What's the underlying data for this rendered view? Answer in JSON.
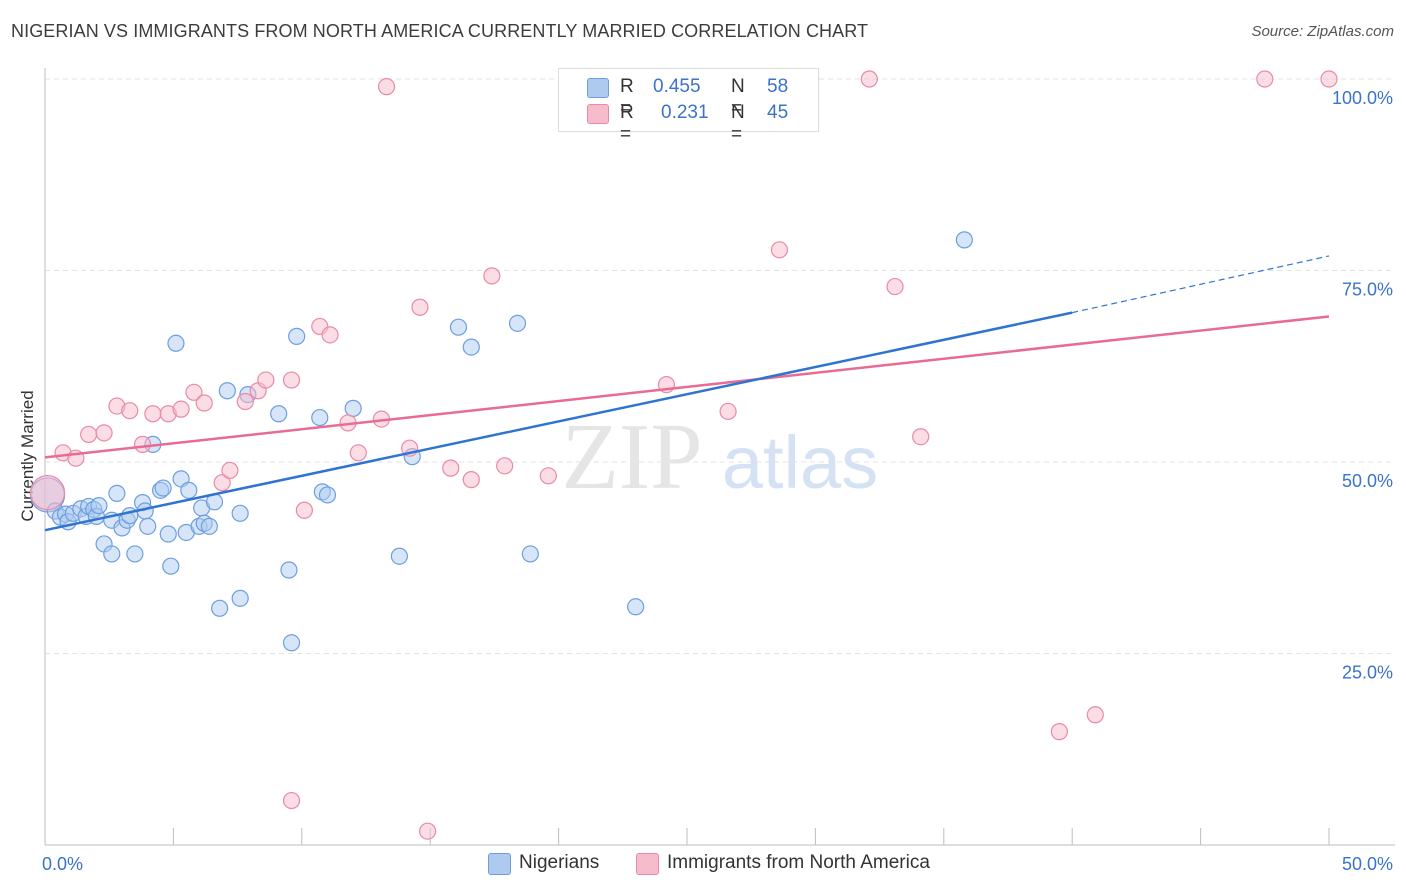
{
  "title": "NIGERIAN VS IMMIGRANTS FROM NORTH AMERICA CURRENTLY MARRIED CORRELATION CHART",
  "source": "Source: ZipAtlas.com",
  "watermark": {
    "zip": "ZIP",
    "atlas": "atlas"
  },
  "legend": {
    "rows": [
      {
        "r_label": "R =",
        "r_value": "0.455",
        "n_label": "N =",
        "n_value": "58"
      },
      {
        "r_label": "R =",
        "r_value": "0.231",
        "n_label": "N =",
        "n_value": "45"
      }
    ]
  },
  "colors": {
    "blue_fill": "#aecbef",
    "blue_stroke": "#6d9ee0",
    "blue_line": "#2f74d0",
    "pink_fill": "#f7bccc",
    "pink_stroke": "#e98aa6",
    "pink_line": "#e86b93",
    "tick_label": "#3a73c9",
    "grid": "#e3e3e3"
  },
  "chart_data": {
    "type": "scatter",
    "title": "NIGERIAN VS IMMIGRANTS FROM NORTH AMERICA CURRENTLY MARRIED CORRELATION CHART",
    "xlabel": "",
    "ylabel": "Currently Married",
    "xlim": [
      0,
      50
    ],
    "ylim": [
      0,
      100
    ],
    "x_tick_labels": [
      "0.0%",
      "50.0%"
    ],
    "y_tick_values": [
      25,
      50,
      75,
      100
    ],
    "y_tick_labels": [
      "25.0%",
      "50.0%",
      "75.0%",
      "100.0%"
    ],
    "grid": true,
    "legend_placement": "top-center",
    "series": [
      {
        "name": "Nigerians",
        "color": "#6d9ee0",
        "r": 0.455,
        "n": 58,
        "trend": {
          "x": [
            0,
            40
          ],
          "y": [
            41.1,
            69.5
          ],
          "dashed_extension": {
            "x": [
              40,
              50
            ],
            "y": [
              69.5,
              76.9
            ]
          }
        },
        "points": [
          [
            0.1,
            45.7
          ],
          [
            0.4,
            43.6
          ],
          [
            0.6,
            42.8
          ],
          [
            0.8,
            43.2
          ],
          [
            0.9,
            42.2
          ],
          [
            1.1,
            43.3
          ],
          [
            1.4,
            43.9
          ],
          [
            1.6,
            42.9
          ],
          [
            1.7,
            44.2
          ],
          [
            1.9,
            43.8
          ],
          [
            2.0,
            42.9
          ],
          [
            2.1,
            44.3
          ],
          [
            2.3,
            39.3
          ],
          [
            2.6,
            42.4
          ],
          [
            2.6,
            38.0
          ],
          [
            2.8,
            45.9
          ],
          [
            3.0,
            41.4
          ],
          [
            3.2,
            42.4
          ],
          [
            3.3,
            43.0
          ],
          [
            3.5,
            38.0
          ],
          [
            3.8,
            44.7
          ],
          [
            3.9,
            43.6
          ],
          [
            4.0,
            41.6
          ],
          [
            4.2,
            52.3
          ],
          [
            4.5,
            46.3
          ],
          [
            4.6,
            46.6
          ],
          [
            4.8,
            40.6
          ],
          [
            4.9,
            36.4
          ],
          [
            5.1,
            65.5
          ],
          [
            5.3,
            47.8
          ],
          [
            5.5,
            40.8
          ],
          [
            5.6,
            46.3
          ],
          [
            6.0,
            41.6
          ],
          [
            6.1,
            44.0
          ],
          [
            6.2,
            42.0
          ],
          [
            6.4,
            41.6
          ],
          [
            6.6,
            44.8
          ],
          [
            6.8,
            30.9
          ],
          [
            7.1,
            59.3
          ],
          [
            7.6,
            32.2
          ],
          [
            7.6,
            43.3
          ],
          [
            7.9,
            58.8
          ],
          [
            9.1,
            56.3
          ],
          [
            9.5,
            35.9
          ],
          [
            9.6,
            26.4
          ],
          [
            9.8,
            66.4
          ],
          [
            10.7,
            55.8
          ],
          [
            10.8,
            46.1
          ],
          [
            11.0,
            45.7
          ],
          [
            12.0,
            57.0
          ],
          [
            13.8,
            37.7
          ],
          [
            14.3,
            50.7
          ],
          [
            16.1,
            67.6
          ],
          [
            16.6,
            65.0
          ],
          [
            18.4,
            68.1
          ],
          [
            18.9,
            38.0
          ],
          [
            23.0,
            31.1
          ],
          [
            35.8,
            79.0
          ]
        ]
      },
      {
        "name": "Immigrants from North America",
        "color": "#e98aa6",
        "r": 0.231,
        "n": 45,
        "trend": {
          "x": [
            0,
            50
          ],
          "y": [
            50.6,
            69.0
          ]
        },
        "points": [
          [
            0.1,
            46.0
          ],
          [
            0.7,
            51.2
          ],
          [
            1.2,
            50.5
          ],
          [
            1.7,
            53.6
          ],
          [
            2.3,
            53.8
          ],
          [
            2.8,
            57.3
          ],
          [
            3.3,
            56.7
          ],
          [
            3.8,
            52.3
          ],
          [
            4.2,
            56.3
          ],
          [
            4.8,
            56.3
          ],
          [
            5.3,
            56.9
          ],
          [
            5.8,
            59.1
          ],
          [
            6.2,
            57.7
          ],
          [
            6.9,
            47.3
          ],
          [
            7.2,
            48.9
          ],
          [
            7.8,
            57.9
          ],
          [
            8.3,
            59.3
          ],
          [
            8.6,
            60.7
          ],
          [
            9.6,
            60.7
          ],
          [
            10.1,
            43.7
          ],
          [
            10.7,
            67.7
          ],
          [
            11.1,
            66.6
          ],
          [
            11.8,
            55.1
          ],
          [
            12.2,
            51.2
          ],
          [
            13.1,
            55.6
          ],
          [
            13.3,
            99.0
          ],
          [
            14.2,
            51.8
          ],
          [
            14.6,
            70.2
          ],
          [
            14.9,
            1.8
          ],
          [
            15.8,
            49.2
          ],
          [
            16.6,
            47.7
          ],
          [
            17.4,
            74.3
          ],
          [
            17.9,
            49.5
          ],
          [
            19.6,
            48.2
          ],
          [
            24.2,
            60.1
          ],
          [
            26.6,
            56.6
          ],
          [
            28.6,
            77.7
          ],
          [
            32.1,
            100.0
          ],
          [
            33.1,
            72.9
          ],
          [
            34.1,
            53.3
          ],
          [
            39.5,
            14.8
          ],
          [
            40.9,
            17.0
          ],
          [
            9.6,
            5.8
          ],
          [
            47.5,
            100.0
          ],
          [
            50.0,
            100.0
          ]
        ]
      }
    ]
  }
}
